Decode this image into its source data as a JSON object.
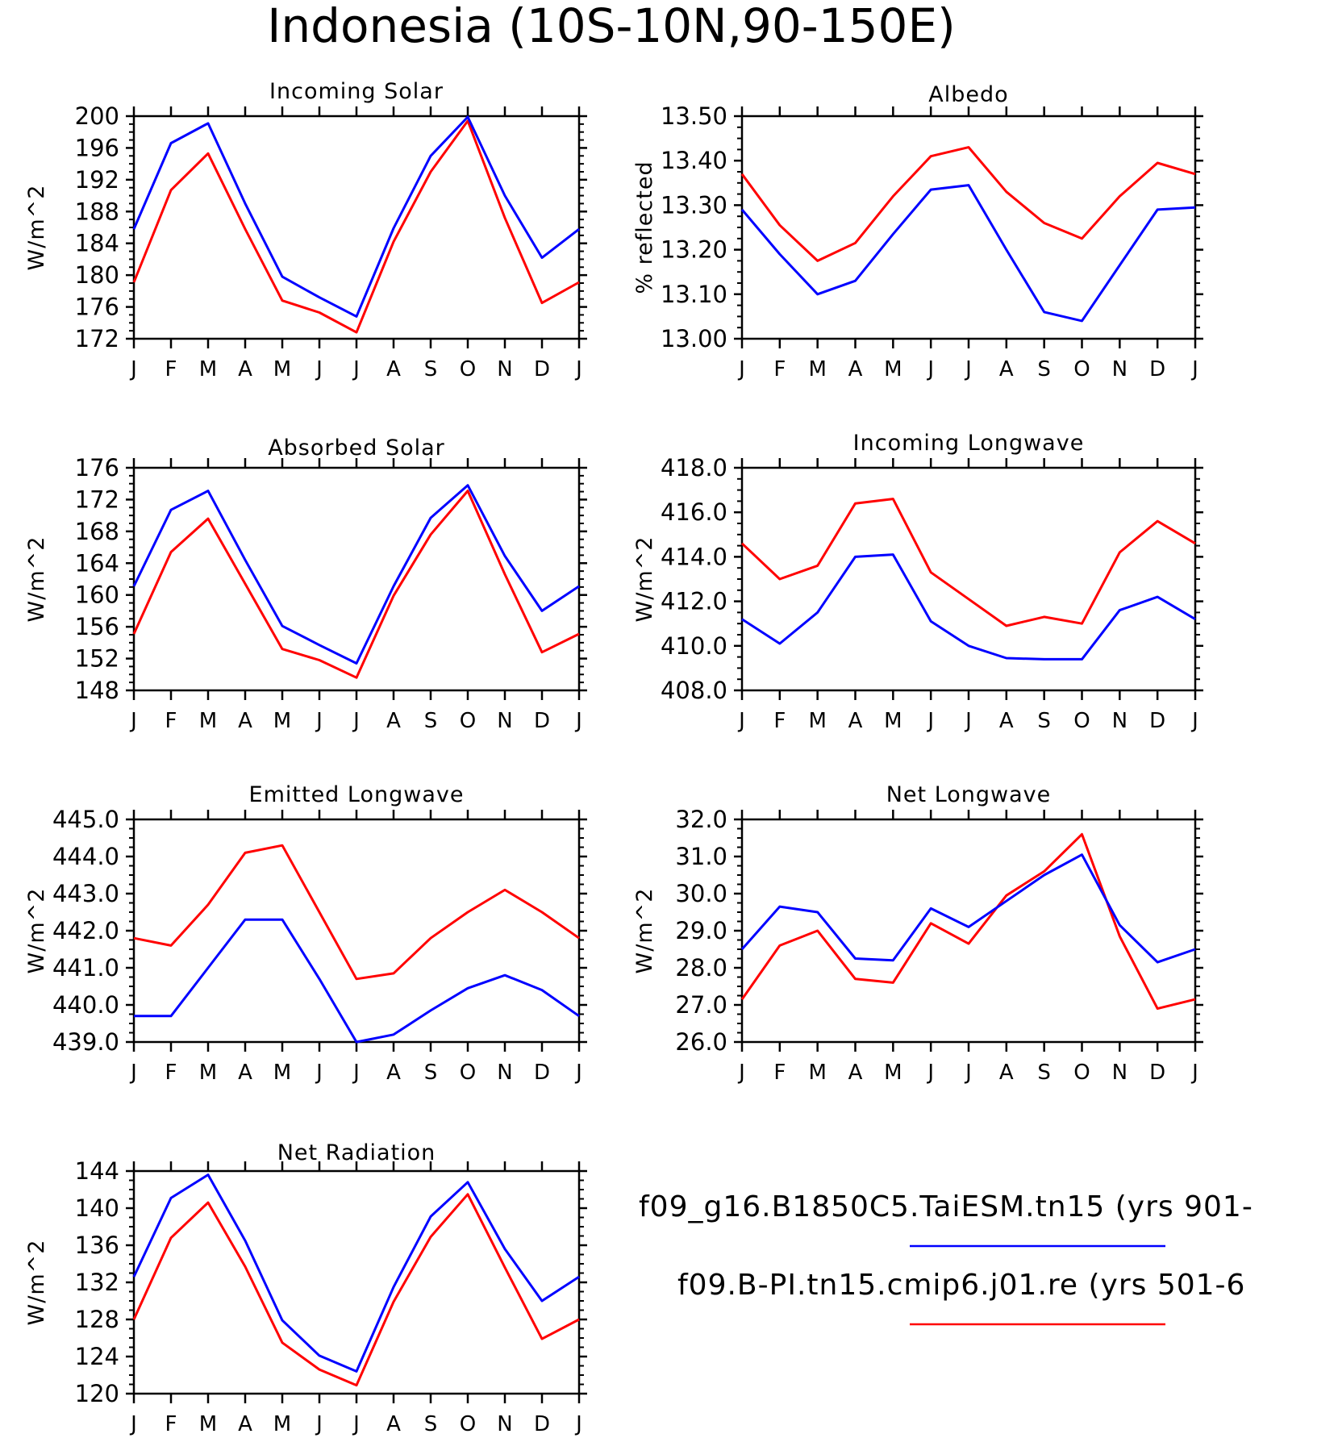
{
  "title": "Indonesia (10S-10N,90-150E)",
  "months": [
    "J",
    "F",
    "M",
    "A",
    "M",
    "J",
    "J",
    "A",
    "S",
    "O",
    "N",
    "D",
    "J"
  ],
  "colors": {
    "run1": "#0000ff",
    "run2": "#ff0000"
  },
  "legend": {
    "run1_label": "f09_g16.B1850C5.TaiESM.tn15 (yrs 901-",
    "run2_label": "f09.B-PI.tn15.cmip6.j01.re (yrs 501-6"
  },
  "chart_data": [
    {
      "type": "line",
      "title": "Incoming Solar",
      "ylabel": "W/m^2",
      "ylim": [
        172,
        200
      ],
      "yticks": [
        172,
        176,
        180,
        184,
        188,
        192,
        196,
        200
      ],
      "ytick_decimals": 0,
      "x": [
        "J",
        "F",
        "M",
        "A",
        "M",
        "J",
        "J",
        "A",
        "S",
        "O",
        "N",
        "D",
        "J"
      ],
      "series": [
        {
          "name": "f09_g16.B1850C5.TaiESM.tn15",
          "color": "#0000ff",
          "values": [
            185.8,
            196.6,
            199.1,
            189.0,
            179.8,
            177.2,
            174.8,
            185.9,
            195.0,
            199.9,
            190.0,
            182.2,
            185.8
          ]
        },
        {
          "name": "f09.B-PI.tn15.cmip6.j01.re",
          "color": "#ff0000",
          "values": [
            179.1,
            190.7,
            195.3,
            185.8,
            176.8,
            175.3,
            172.8,
            184.2,
            193.0,
            199.4,
            187.2,
            176.5,
            179.1
          ]
        }
      ]
    },
    {
      "type": "line",
      "title": "Albedo",
      "ylabel": "% reflected",
      "ylim": [
        13.0,
        13.5
      ],
      "yticks": [
        13.0,
        13.1,
        13.2,
        13.3,
        13.4,
        13.5
      ],
      "ytick_decimals": 2,
      "x": [
        "J",
        "F",
        "M",
        "A",
        "M",
        "J",
        "J",
        "A",
        "S",
        "O",
        "N",
        "D",
        "J"
      ],
      "series": [
        {
          "name": "f09_g16.B1850C5.TaiESM.tn15",
          "color": "#0000ff",
          "values": [
            13.29,
            13.19,
            13.1,
            13.13,
            13.235,
            13.335,
            13.345,
            13.2,
            13.06,
            13.04,
            13.165,
            13.29,
            13.295
          ]
        },
        {
          "name": "f09.B-PI.tn15.cmip6.j01.re",
          "color": "#ff0000",
          "values": [
            13.37,
            13.255,
            13.175,
            13.215,
            13.32,
            13.41,
            13.43,
            13.33,
            13.26,
            13.225,
            13.32,
            13.395,
            13.37
          ]
        }
      ]
    },
    {
      "type": "line",
      "title": "Absorbed Solar",
      "ylabel": "W/m^2",
      "ylim": [
        148,
        176
      ],
      "yticks": [
        148,
        152,
        156,
        160,
        164,
        168,
        172,
        176
      ],
      "ytick_decimals": 0,
      "x": [
        "J",
        "F",
        "M",
        "A",
        "M",
        "J",
        "J",
        "A",
        "S",
        "O",
        "N",
        "D",
        "J"
      ],
      "series": [
        {
          "name": "f09_g16.B1850C5.TaiESM.tn15",
          "color": "#0000ff",
          "values": [
            161.1,
            170.7,
            173.1,
            164.4,
            156.1,
            153.7,
            151.4,
            161.1,
            169.7,
            173.8,
            164.9,
            158.0,
            161.1
          ]
        },
        {
          "name": "f09.B-PI.tn15.cmip6.j01.re",
          "color": "#ff0000",
          "values": [
            155.1,
            165.4,
            169.6,
            161.4,
            153.2,
            151.8,
            149.6,
            159.9,
            167.6,
            173.1,
            162.6,
            152.8,
            155.1
          ]
        }
      ]
    },
    {
      "type": "line",
      "title": "Incoming Longwave",
      "ylabel": "W/m^2",
      "ylim": [
        408,
        418
      ],
      "yticks": [
        408,
        410,
        412,
        414,
        416,
        418
      ],
      "ytick_decimals": 1,
      "x": [
        "J",
        "F",
        "M",
        "A",
        "M",
        "J",
        "J",
        "A",
        "S",
        "O",
        "N",
        "D",
        "J"
      ],
      "series": [
        {
          "name": "f09_g16.B1850C5.TaiESM.tn15",
          "color": "#0000ff",
          "values": [
            411.2,
            410.1,
            411.5,
            414.0,
            414.1,
            411.1,
            410.0,
            409.45,
            409.4,
            409.4,
            411.6,
            412.2,
            411.2
          ]
        },
        {
          "name": "f09.B-PI.tn15.cmip6.j01.re",
          "color": "#ff0000",
          "values": [
            414.6,
            413.0,
            413.6,
            416.4,
            416.6,
            413.3,
            412.1,
            410.9,
            411.3,
            411.0,
            414.2,
            415.6,
            414.6
          ]
        }
      ]
    },
    {
      "type": "line",
      "title": "Emitted Longwave",
      "ylabel": "W/m^2",
      "ylim": [
        439,
        445
      ],
      "yticks": [
        439,
        440,
        441,
        442,
        443,
        444,
        445
      ],
      "ytick_decimals": 1,
      "x": [
        "J",
        "F",
        "M",
        "A",
        "M",
        "J",
        "J",
        "A",
        "S",
        "O",
        "N",
        "D",
        "J"
      ],
      "series": [
        {
          "name": "f09_g16.B1850C5.TaiESM.tn15",
          "color": "#0000ff",
          "values": [
            439.7,
            439.7,
            441.0,
            442.3,
            442.3,
            440.7,
            439.0,
            439.2,
            439.85,
            440.45,
            440.8,
            440.4,
            439.7
          ]
        },
        {
          "name": "f09.B-PI.tn15.cmip6.j01.re",
          "color": "#ff0000",
          "values": [
            441.8,
            441.6,
            442.7,
            444.1,
            444.3,
            442.5,
            440.7,
            440.85,
            441.8,
            442.5,
            443.1,
            442.5,
            441.8
          ]
        }
      ]
    },
    {
      "type": "line",
      "title": "Net Longwave",
      "ylabel": "W/m^2",
      "ylim": [
        26,
        32
      ],
      "yticks": [
        26,
        27,
        28,
        29,
        30,
        31,
        32
      ],
      "ytick_decimals": 1,
      "x": [
        "J",
        "F",
        "M",
        "A",
        "M",
        "J",
        "J",
        "A",
        "S",
        "O",
        "N",
        "D",
        "J"
      ],
      "series": [
        {
          "name": "f09_g16.B1850C5.TaiESM.tn15",
          "color": "#0000ff",
          "values": [
            28.5,
            29.65,
            29.5,
            28.25,
            28.2,
            29.6,
            29.1,
            29.8,
            30.5,
            31.05,
            29.15,
            28.15,
            28.5
          ]
        },
        {
          "name": "f09.B-PI.tn15.cmip6.j01.re",
          "color": "#ff0000",
          "values": [
            27.15,
            28.6,
            29.0,
            27.7,
            27.6,
            29.2,
            28.65,
            29.95,
            30.6,
            31.6,
            28.85,
            26.9,
            27.15
          ]
        }
      ]
    },
    {
      "type": "line",
      "title": "Net Radiation",
      "ylabel": "W/m^2",
      "ylim": [
        120,
        144
      ],
      "yticks": [
        120,
        124,
        128,
        132,
        136,
        140,
        144
      ],
      "ytick_decimals": 0,
      "x": [
        "J",
        "F",
        "M",
        "A",
        "M",
        "J",
        "J",
        "A",
        "S",
        "O",
        "N",
        "D",
        "J"
      ],
      "series": [
        {
          "name": "f09_g16.B1850C5.TaiESM.tn15",
          "color": "#0000ff",
          "values": [
            132.6,
            141.1,
            143.6,
            136.5,
            127.9,
            124.1,
            122.4,
            131.5,
            139.1,
            142.8,
            135.6,
            130.0,
            132.6
          ]
        },
        {
          "name": "f09.B-PI.tn15.cmip6.j01.re",
          "color": "#ff0000",
          "values": [
            128.0,
            136.8,
            140.6,
            133.7,
            125.5,
            122.6,
            120.9,
            129.9,
            136.9,
            141.5,
            133.6,
            125.9,
            128.0
          ]
        }
      ]
    }
  ]
}
